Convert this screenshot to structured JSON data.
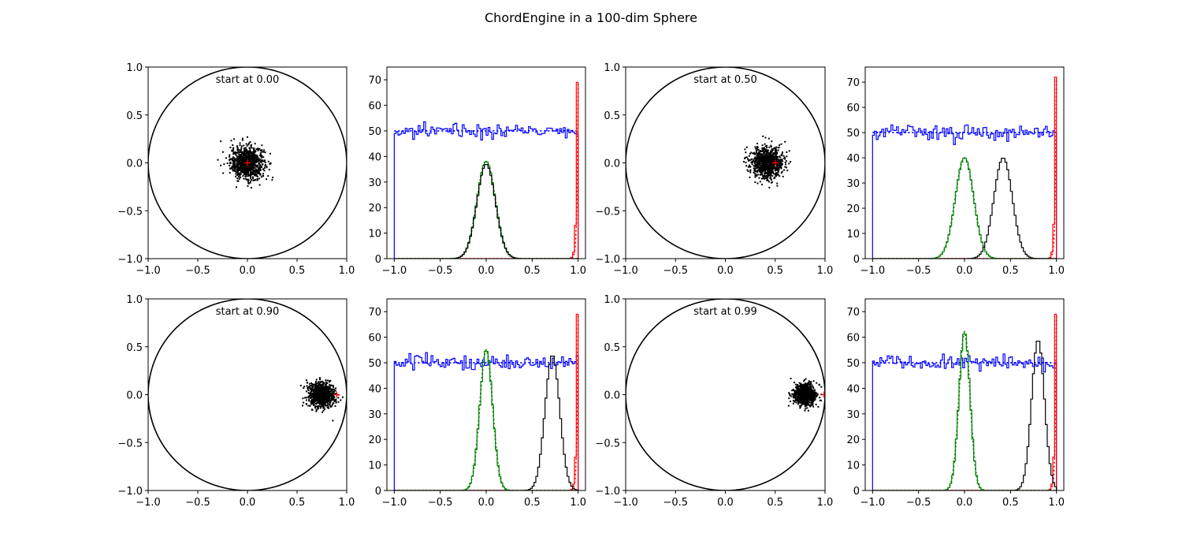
{
  "figure": {
    "title": "ChordEngine in a 100-dim Sphere"
  },
  "chart_data": [
    {
      "type": "scatter",
      "panel": "scatter-1",
      "annotation": "start at 0.00",
      "start": 0.0,
      "xlim": [
        -1.0,
        1.0
      ],
      "ylim": [
        -1.0,
        1.0
      ],
      "xticks": [
        "−1.0",
        "−0.5",
        "0.0",
        "0.5",
        "1.0"
      ],
      "yticks": [
        "−1.0",
        "−0.5",
        "0.0",
        "0.5",
        "1.0"
      ],
      "cloud": {
        "center": [
          0.0,
          0.0
        ],
        "spread": 0.085,
        "count": 900
      },
      "marker_color": "#ff0000",
      "circle": true
    },
    {
      "type": "histogram",
      "panel": "hist-1",
      "xlim": [
        -1.08,
        1.08
      ],
      "ylim": [
        0,
        75
      ],
      "xticks": [
        "−1.0",
        "−0.5",
        "0.0",
        "0.5",
        "1.0"
      ],
      "yticks": [
        "0",
        "10",
        "20",
        "30",
        "40",
        "50",
        "60",
        "70"
      ],
      "series": [
        {
          "color": "#0000ff",
          "kind": "uniform",
          "level": 50,
          "noise": 2.5,
          "from": -1.0,
          "to": 1.0
        },
        {
          "color": "#ff0000",
          "kind": "edge",
          "peak": 69
        },
        {
          "color": "#008000",
          "kind": "gauss",
          "center": 0.0,
          "sigma": 0.1,
          "peak": 38
        },
        {
          "color": "#000000",
          "kind": "gauss",
          "center": 0.0,
          "sigma": 0.1,
          "peak": 37
        }
      ]
    },
    {
      "type": "scatter",
      "panel": "scatter-2",
      "annotation": "start at 0.50",
      "start": 0.5,
      "xlim": [
        -1.0,
        1.0
      ],
      "ylim": [
        -1.0,
        1.0
      ],
      "xticks": [
        "−1.0",
        "−0.5",
        "0.0",
        "0.5",
        "1.0"
      ],
      "yticks": [
        "−1.0",
        "−0.5",
        "0.0",
        "0.5",
        "1.0"
      ],
      "cloud": {
        "center": [
          0.42,
          0.0
        ],
        "spread": 0.08,
        "count": 900
      },
      "marker_color": "#ff0000",
      "circle": true
    },
    {
      "type": "histogram",
      "panel": "hist-2",
      "xlim": [
        -1.08,
        1.08
      ],
      "ylim": [
        0,
        76
      ],
      "xticks": [
        "−1.0",
        "−0.5",
        "0.0",
        "0.5",
        "1.0"
      ],
      "yticks": [
        "0",
        "10",
        "20",
        "30",
        "40",
        "50",
        "60",
        "70"
      ],
      "series": [
        {
          "color": "#0000ff",
          "kind": "uniform",
          "level": 50,
          "noise": 2.5,
          "from": -1.0,
          "to": 1.0
        },
        {
          "color": "#ff0000",
          "kind": "edge",
          "peak": 72
        },
        {
          "color": "#008000",
          "kind": "gauss",
          "center": 0.0,
          "sigma": 0.1,
          "peak": 40
        },
        {
          "color": "#000000",
          "kind": "gauss",
          "center": 0.42,
          "sigma": 0.1,
          "peak": 40
        }
      ]
    },
    {
      "type": "scatter",
      "panel": "scatter-3",
      "annotation": "start at 0.90",
      "start": 0.9,
      "xlim": [
        -1.0,
        1.0
      ],
      "ylim": [
        -1.0,
        1.0
      ],
      "xticks": [
        "−1.0",
        "−0.5",
        "0.0",
        "0.5",
        "1.0"
      ],
      "yticks": [
        "−1.0",
        "−0.5",
        "0.0",
        "0.5",
        "1.0"
      ],
      "cloud": {
        "center": [
          0.74,
          0.0
        ],
        "spread": 0.065,
        "count": 900
      },
      "marker_color": "#ff0000",
      "circle": true
    },
    {
      "type": "histogram",
      "panel": "hist-3",
      "xlim": [
        -1.08,
        1.08
      ],
      "ylim": [
        0,
        75
      ],
      "xticks": [
        "−1.0",
        "−0.5",
        "0.0",
        "0.5",
        "1.0"
      ],
      "yticks": [
        "0",
        "10",
        "20",
        "30",
        "40",
        "50",
        "60",
        "70"
      ],
      "series": [
        {
          "color": "#0000ff",
          "kind": "uniform",
          "level": 50,
          "noise": 2.5,
          "from": -1.0,
          "to": 1.0
        },
        {
          "color": "#ff0000",
          "kind": "edge",
          "peak": 69
        },
        {
          "color": "#008000",
          "kind": "gauss",
          "center": 0.0,
          "sigma": 0.07,
          "peak": 55
        },
        {
          "color": "#000000",
          "kind": "gauss",
          "center": 0.72,
          "sigma": 0.08,
          "peak": 53
        }
      ]
    },
    {
      "type": "scatter",
      "panel": "scatter-4",
      "annotation": "start at 0.99",
      "start": 0.99,
      "xlim": [
        -1.0,
        1.0
      ],
      "ylim": [
        -1.0,
        1.0
      ],
      "xticks": [
        "−1.0",
        "−0.5",
        "0.0",
        "0.5",
        "1.0"
      ],
      "yticks": [
        "−1.0",
        "−0.5",
        "0.0",
        "0.5",
        "1.0"
      ],
      "cloud": {
        "center": [
          0.8,
          0.0
        ],
        "spread": 0.055,
        "count": 900
      },
      "marker_color": "#ff0000",
      "circle": true
    },
    {
      "type": "histogram",
      "panel": "hist-4",
      "xlim": [
        -1.08,
        1.08
      ],
      "ylim": [
        0,
        75
      ],
      "xticks": [
        "−1.0",
        "−0.5",
        "0.0",
        "0.5",
        "1.0"
      ],
      "yticks": [
        "0",
        "10",
        "20",
        "30",
        "40",
        "50",
        "60",
        "70"
      ],
      "series": [
        {
          "color": "#0000ff",
          "kind": "uniform",
          "level": 50,
          "noise": 2.5,
          "from": -1.0,
          "to": 1.0
        },
        {
          "color": "#ff0000",
          "kind": "edge",
          "peak": 69
        },
        {
          "color": "#008000",
          "kind": "gauss",
          "center": 0.0,
          "sigma": 0.06,
          "peak": 62
        },
        {
          "color": "#000000",
          "kind": "gauss",
          "center": 0.8,
          "sigma": 0.07,
          "peak": 59
        }
      ]
    }
  ]
}
